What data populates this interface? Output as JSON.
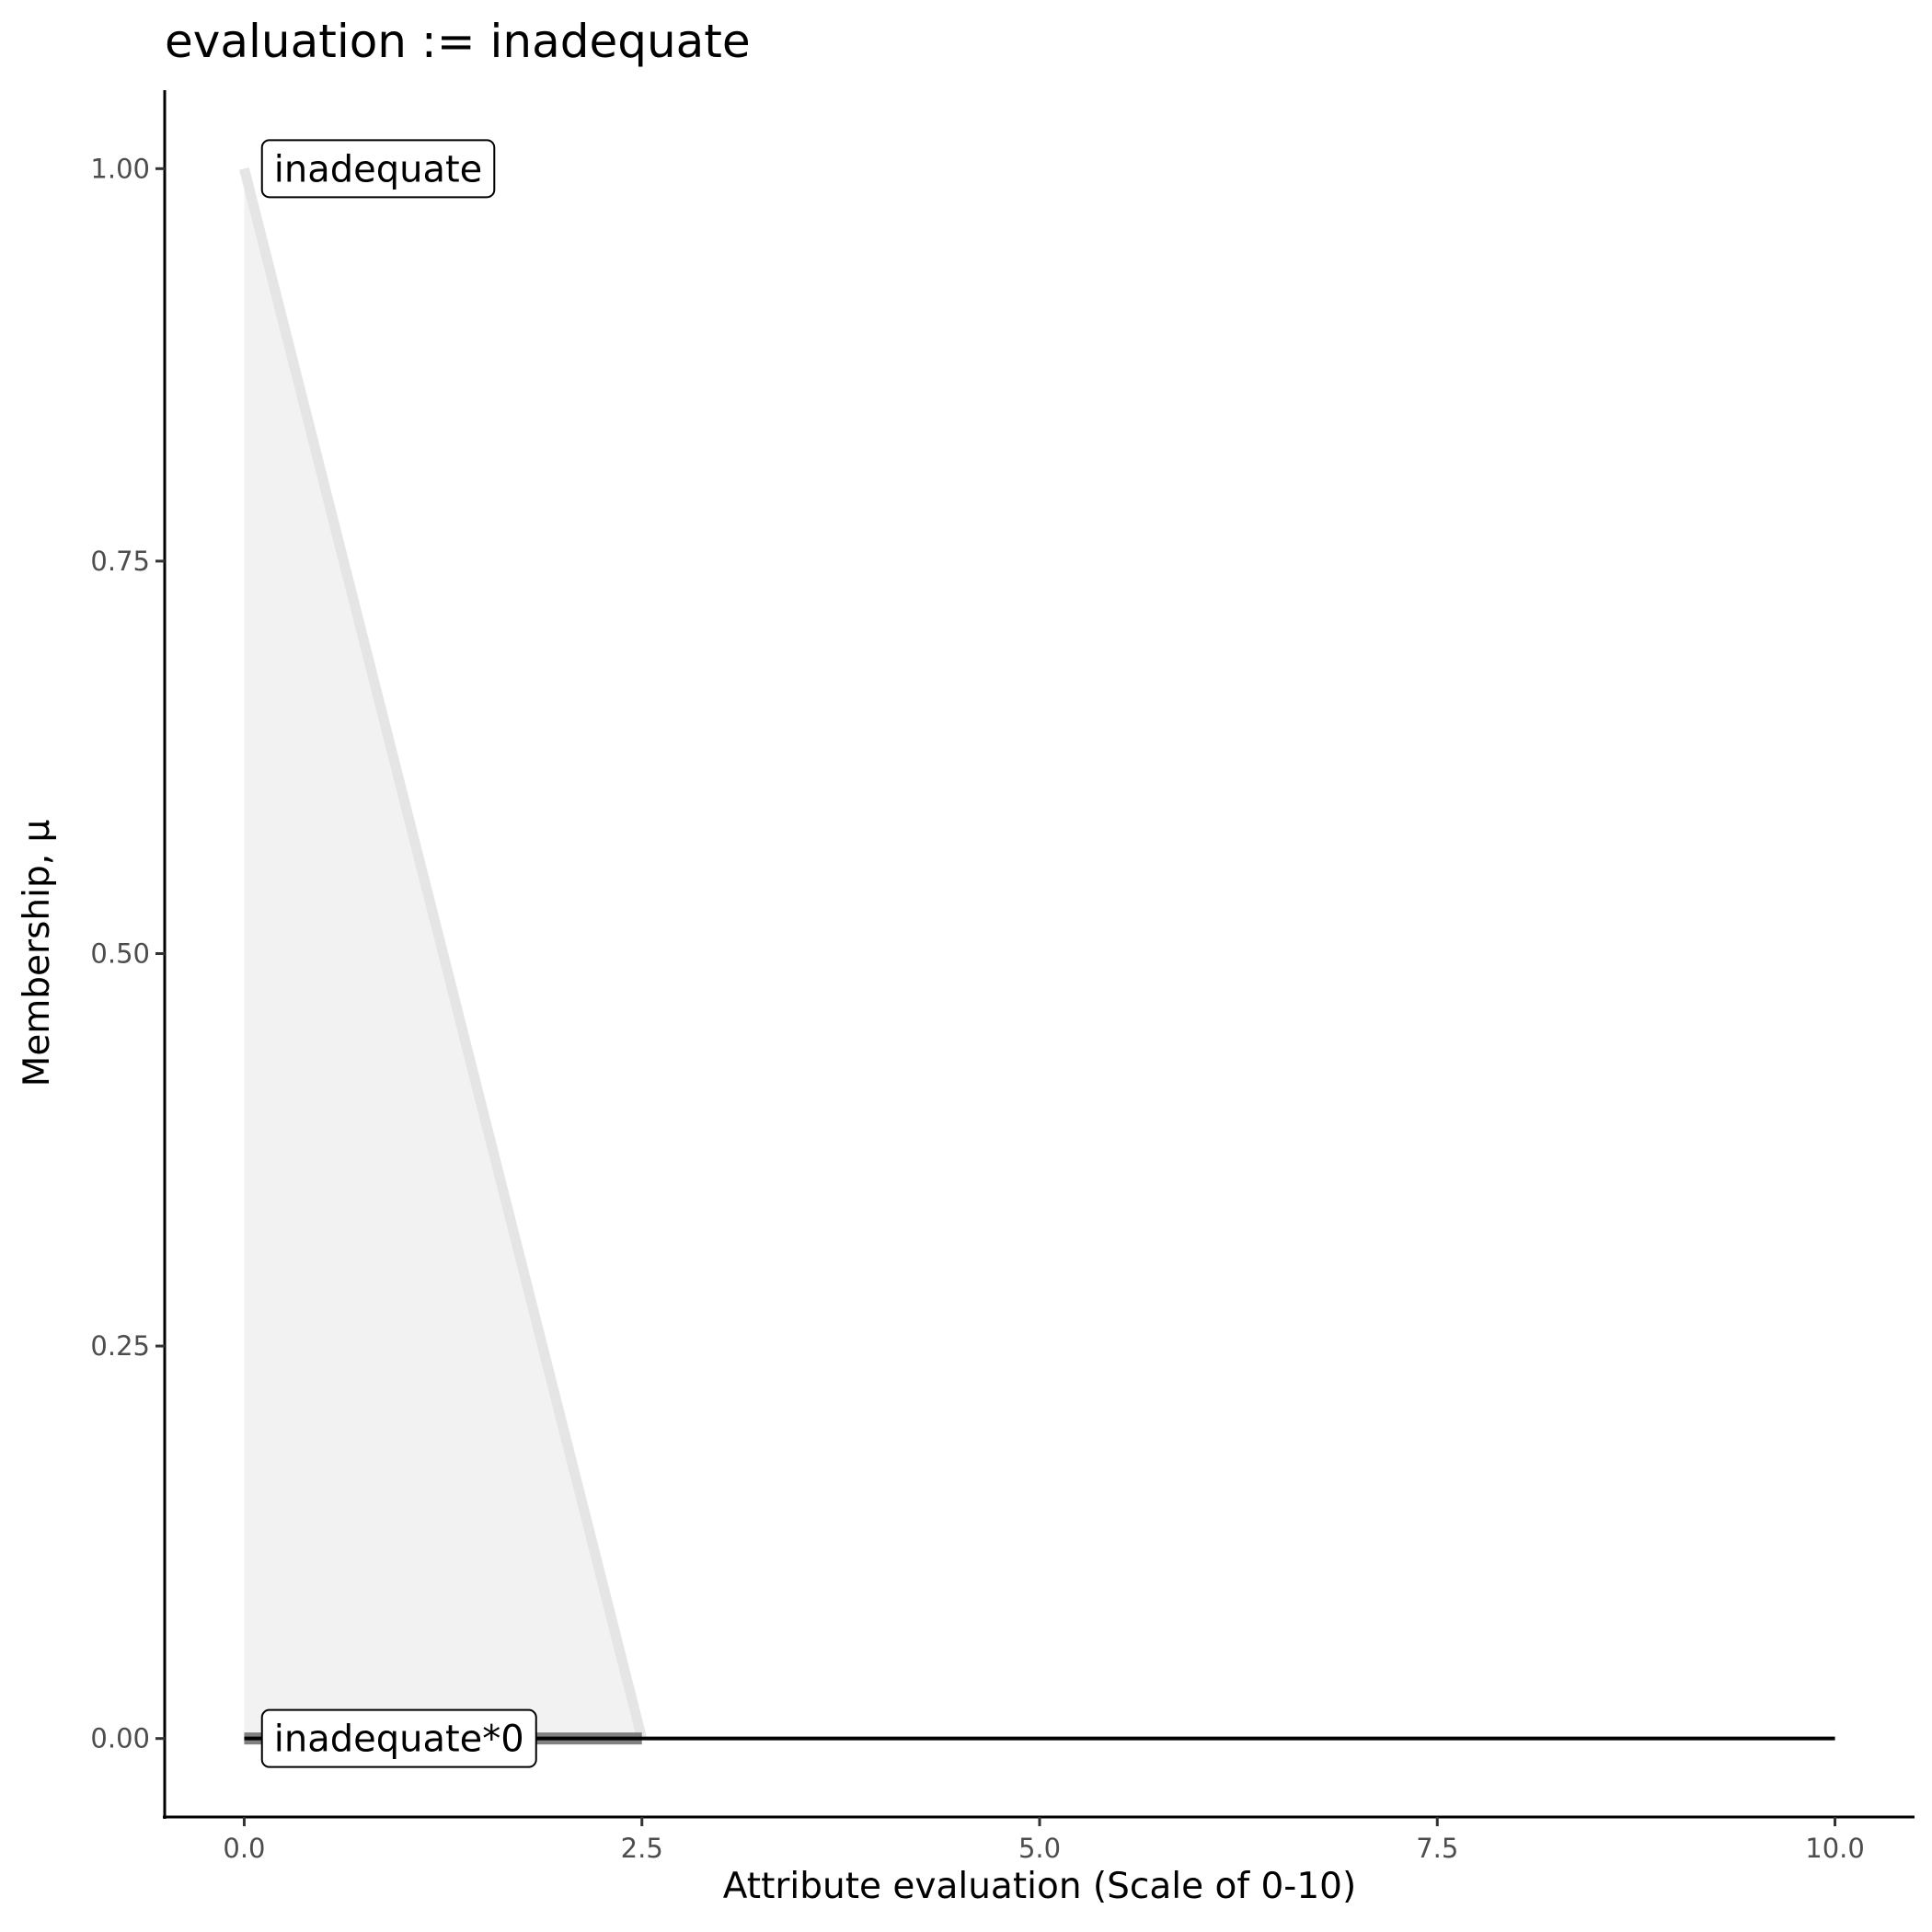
{
  "chart_data": {
    "type": "area",
    "title": "evaluation := inadequate",
    "xlabel": "Attribute evaluation (Scale of 0-10)",
    "ylabel": "Membership, μ",
    "xlim": [
      -0.5,
      10.5
    ],
    "ylim": [
      -0.05,
      1.05
    ],
    "x_ticks": [
      0,
      2.5,
      5,
      7.5,
      10
    ],
    "x_tick_labels": [
      "0.0",
      "2.5",
      "5.0",
      "7.5",
      "10.0"
    ],
    "y_ticks": [
      0,
      0.25,
      0.5,
      0.75,
      1
    ],
    "y_tick_labels": [
      "0.00",
      "0.25",
      "0.50",
      "0.75",
      "1.00"
    ],
    "grid": false,
    "series": [
      {
        "name": "inadequate",
        "x": [
          0,
          2.5
        ],
        "y": [
          1,
          0
        ],
        "fill": "#f2f2f2",
        "line_color": "#e5e5e5"
      },
      {
        "name": "inadequate*0",
        "x": [
          0,
          2.5
        ],
        "y": [
          0,
          0
        ],
        "line_color": "#808080"
      },
      {
        "x": [
          0,
          10
        ],
        "y": [
          0,
          0
        ],
        "line_color": "#000000"
      }
    ],
    "annotations": [
      {
        "text": "inadequate",
        "x": 0.1,
        "y": 1
      },
      {
        "text": "inadequate*0",
        "x": 0.1,
        "y": 0
      }
    ]
  }
}
